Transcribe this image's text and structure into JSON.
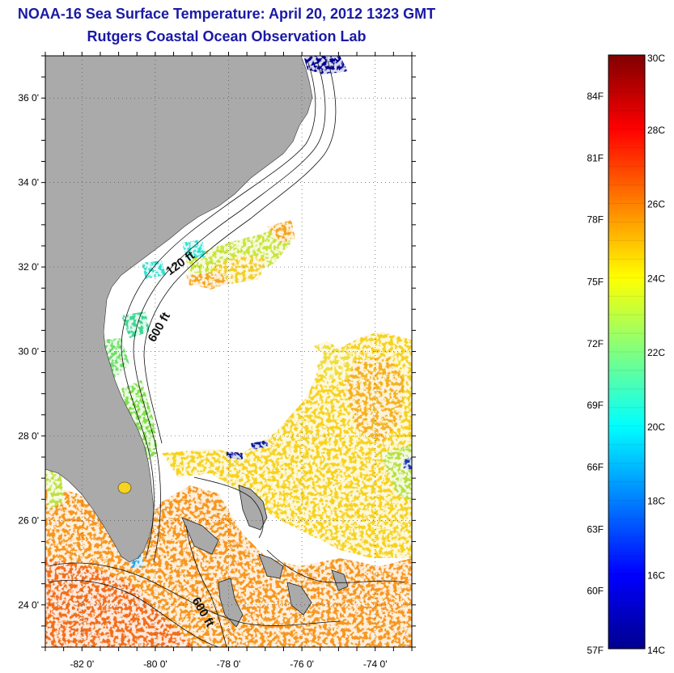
{
  "title": "NOAA-16 Sea Surface Temperature:  April 20, 2012 1323 GMT",
  "subtitle": "Rutgers Coastal Ocean Observation Lab",
  "map": {
    "lon_range": [
      -83,
      -73
    ],
    "lat_range": [
      23,
      37
    ],
    "lat_labels": [
      {
        "value": 36,
        "text": "36 0'"
      },
      {
        "value": 34,
        "text": "34 0'"
      },
      {
        "value": 32,
        "text": "32 0'"
      },
      {
        "value": 30,
        "text": "30 0'"
      },
      {
        "value": 28,
        "text": "28 0'"
      },
      {
        "value": 26,
        "text": "26 0'"
      },
      {
        "value": 24,
        "text": "24 0'"
      }
    ],
    "lon_labels": [
      {
        "value": -82,
        "text": "-82 0'"
      },
      {
        "value": -80,
        "text": "-80 0'"
      },
      {
        "value": -78,
        "text": "-78 0'"
      },
      {
        "value": -76,
        "text": "-76 0'"
      },
      {
        "value": -74,
        "text": "-74 0'"
      }
    ],
    "contour_labels": [
      "120 ft",
      "600 ft",
      "600 ft"
    ],
    "land_color": "#aaaaaa",
    "colors": {
      "cloud": "#ffffff",
      "cold": "#00008f",
      "cool": "#00d8e8",
      "green": "#7fe04a",
      "warm_yellow": "#f7d21e",
      "warm_orange": "#f7961e"
    }
  },
  "colorbar": {
    "celsius_labels": [
      "30C",
      "28C",
      "26C",
      "24C",
      "22C",
      "20C",
      "18C",
      "16C",
      "14C"
    ],
    "fahrenheit_labels": [
      {
        "text": "84F",
        "value_c": 28.89
      },
      {
        "text": "81F",
        "value_c": 27.22
      },
      {
        "text": "78F",
        "value_c": 25.56
      },
      {
        "text": "75F",
        "value_c": 23.89
      },
      {
        "text": "72F",
        "value_c": 22.22
      },
      {
        "text": "69F",
        "value_c": 20.56
      },
      {
        "text": "66F",
        "value_c": 18.89
      },
      {
        "text": "63F",
        "value_c": 17.22
      },
      {
        "text": "60F",
        "value_c": 15.56
      },
      {
        "text": "57F",
        "value_c": 13.89
      }
    ],
    "range_c": [
      14,
      30
    ],
    "colormap": [
      "#00008f",
      "#0000ff",
      "#0080ff",
      "#00ffff",
      "#80ff80",
      "#ffff00",
      "#ff8000",
      "#ff0000",
      "#800000"
    ]
  }
}
